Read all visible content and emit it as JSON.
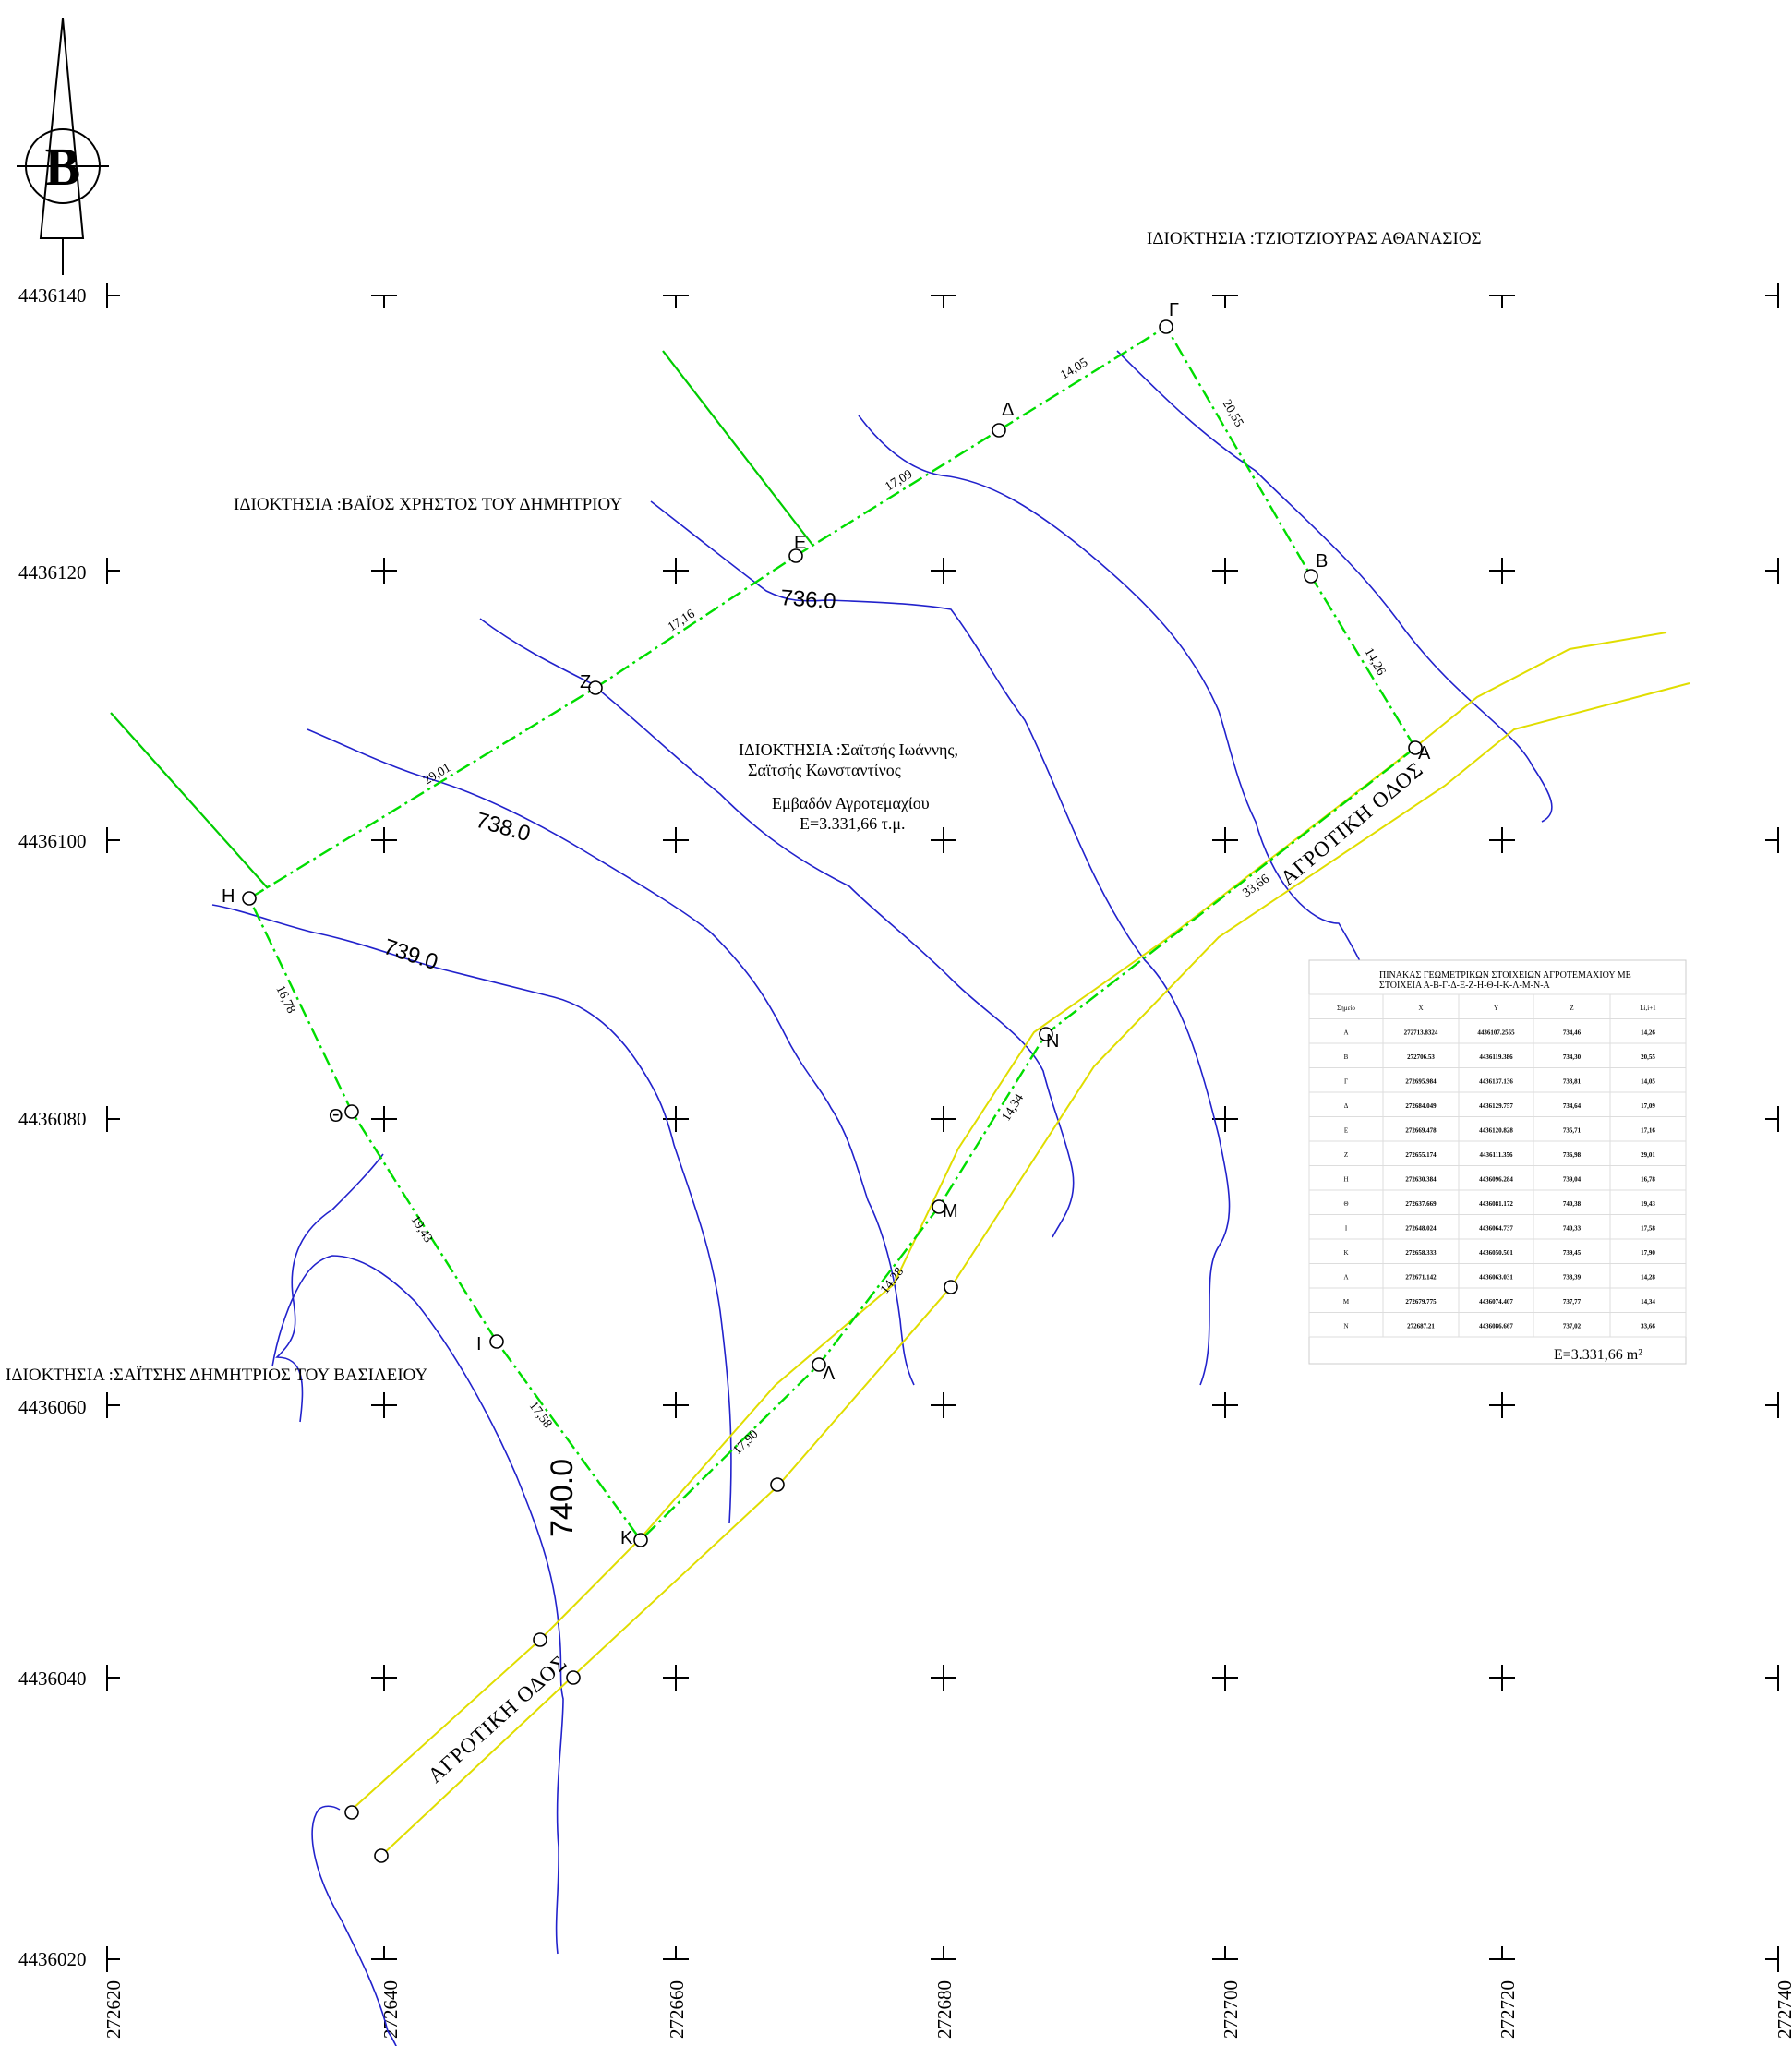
{
  "north_arrow": {
    "letter": "Β",
    "icon": "north-arrow-icon"
  },
  "grid": {
    "y_labels": [
      "4436140",
      "4436120",
      "4436100",
      "4436080",
      "4436060",
      "4436040",
      "4436020"
    ],
    "x_labels": [
      "272620",
      "272640",
      "272660",
      "272680",
      "272700",
      "272720",
      "272740"
    ]
  },
  "owners": {
    "north_east": "ΙΔΙΟΚΤΗΣΙΑ :ΤΖΙΟΤΖΙΟΥΡΑΣ ΑΘΑΝΑΣΙΟΣ",
    "north_west": "ΙΔΙΟΚΤΗΣΙΑ :ΒΑΪΟΣ ΧΡΗΣΤΟΣ ΤΟΥ ΔΗΜΗΤΡΙΟΥ",
    "west": "ΙΔΙΟΚΤΗΣΙΑ :ΣΑΪΤΣΗΣ ΔΗΜΗΤΡΙΟΣ ΤΟΥ ΒΑΣΙΛΕΙΟΥ"
  },
  "parcel": {
    "owner_line1": "ΙΔΙΟΚΤΗΣΙΑ :Σαϊτσής Ιωάννης,",
    "owner_line2": "Σαϊτσής Κωνσταντίνος",
    "area_title": "Εμβαδόν Αγροτεμαχίου",
    "area_value": "Ε=3.331,66 τ.μ."
  },
  "points": {
    "A": "Α",
    "B": "Β",
    "G": "Γ",
    "D": "Δ",
    "E": "Ε",
    "Z": "Ζ",
    "H": "Η",
    "TH": "Θ",
    "I": "Ι",
    "K": "Κ",
    "L": "Λ",
    "M": "Μ",
    "N": "Ν"
  },
  "segments": {
    "AB": "14,26",
    "BG": "20,55",
    "GD": "14,05",
    "DE": "17,09",
    "EZ": "17,16",
    "ZH": "29,01",
    "HTH": "16,78",
    "THI": "19,43",
    "IK": "17,58",
    "KL": "17,90",
    "LM": "14,28",
    "MN": "14,34",
    "NA": "33,66"
  },
  "contours": {
    "c736": "736.0",
    "c738": "738.0",
    "c739": "739.0",
    "c740": "740.0"
  },
  "roads": {
    "road_ne": "ΑΓΡΟΤΙΚΗ ΟΔΟΣ",
    "road_sw": "ΑΓΡΟΤΙΚΗ ΟΔΟΣ"
  },
  "colors": {
    "boundary": "#00dd00",
    "contour": "#2222cc",
    "road": "#eeee00",
    "neighbor": "#00cc00"
  },
  "table": {
    "title_line1": "ΠΙΝΑΚΑΣ ΓΕΩΜΕΤΡΙΚΩΝ ΣΤΟΙΧΕΙΩΝ ΑΓΡΟΤΕΜΑΧΙΟΥ ΜΕ",
    "title_line2": "ΣΤΟΙΧΕΙΑ Α-Β-Γ-Δ-Ε-Ζ-Η-Θ-Ι-Κ-Λ-Μ-Ν-Α",
    "headers": [
      "Σημείο",
      "X",
      "Y",
      "Z",
      "Li,i+1"
    ],
    "rows": [
      [
        "Α",
        "272713.8324",
        "4436107.2555",
        "734,46",
        "14,26"
      ],
      [
        "Β",
        "272706.53",
        "4436119.386",
        "734,30",
        "20,55"
      ],
      [
        "Γ",
        "272695.984",
        "4436137.136",
        "733,81",
        "14,05"
      ],
      [
        "Δ",
        "272684.049",
        "4436129.757",
        "734,64",
        "17,09"
      ],
      [
        "Ε",
        "272669.478",
        "4436120.828",
        "735,71",
        "17,16"
      ],
      [
        "Ζ",
        "272655.174",
        "4436111.356",
        "736,98",
        "29,01"
      ],
      [
        "Η",
        "272630.384",
        "4436096.284",
        "739,04",
        "16,78"
      ],
      [
        "Θ",
        "272637.669",
        "4436081.172",
        "740,38",
        "19,43"
      ],
      [
        "Ι",
        "272648.024",
        "4436064.737",
        "740,33",
        "17,58"
      ],
      [
        "Κ",
        "272658.333",
        "4436050.501",
        "739,45",
        "17,90"
      ],
      [
        "Λ",
        "272671.142",
        "4436063.031",
        "738,39",
        "14,28"
      ],
      [
        "Μ",
        "272679.775",
        "4436074.407",
        "737,77",
        "14,34"
      ],
      [
        "Ν",
        "272687.21",
        "4436086.667",
        "737,02",
        "33,66"
      ]
    ],
    "area": "Ε=3.331,66   m²"
  }
}
